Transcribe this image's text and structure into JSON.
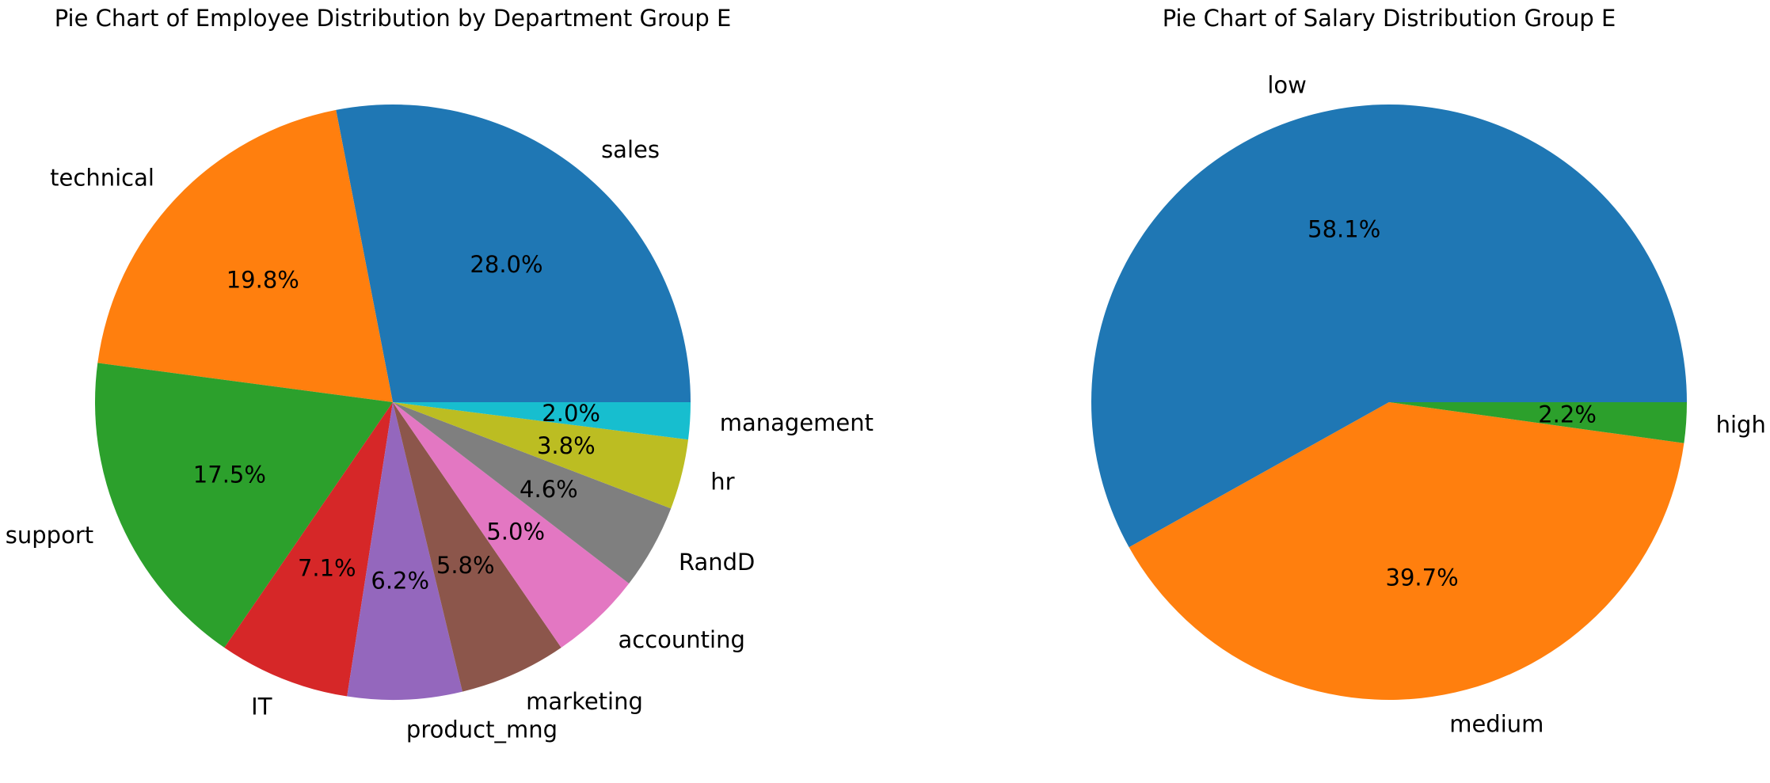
{
  "chart_data": [
    {
      "type": "pie",
      "title": "Pie Chart of Employee Distribution by Department Group E",
      "categories": [
        "sales",
        "technical",
        "support",
        "IT",
        "product_mng",
        "marketing",
        "accounting",
        "RandD",
        "hr",
        "management"
      ],
      "values": [
        28.0,
        19.8,
        17.5,
        7.1,
        6.2,
        5.8,
        5.0,
        4.6,
        3.8,
        2.0
      ],
      "pct_labels": [
        "28.0%",
        "19.8%",
        "17.5%",
        "7.1%",
        "6.2%",
        "5.8%",
        "5.0%",
        "4.6%",
        "3.8%",
        "2.0%"
      ],
      "colors": [
        "#1f77b4",
        "#ff7f0e",
        "#2ca02c",
        "#d62728",
        "#9467bd",
        "#8c564b",
        "#e377c2",
        "#7f7f7f",
        "#bcbd22",
        "#17becf"
      ],
      "start_angle_deg": 0,
      "direction": "counterclockwise"
    },
    {
      "type": "pie",
      "title": "Pie Chart of Salary Distribution Group E",
      "categories": [
        "low",
        "medium",
        "high"
      ],
      "values": [
        58.1,
        39.7,
        2.2
      ],
      "pct_labels": [
        "58.1%",
        "39.7%",
        "2.2%"
      ],
      "colors": [
        "#1f77b4",
        "#ff7f0e",
        "#2ca02c"
      ],
      "start_angle_deg": 0,
      "direction": "counterclockwise"
    }
  ]
}
